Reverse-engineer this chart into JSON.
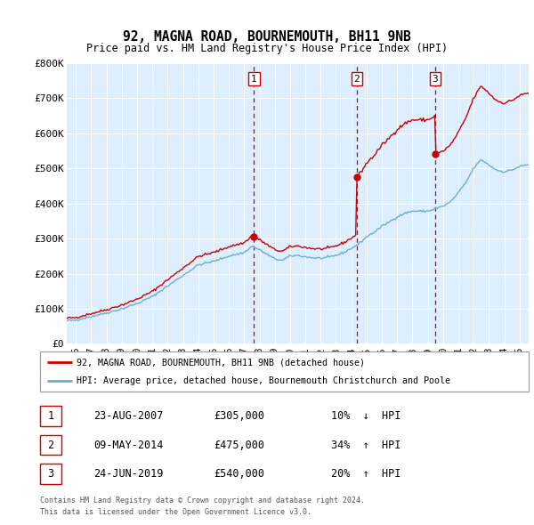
{
  "title": "92, MAGNA ROAD, BOURNEMOUTH, BH11 9NB",
  "subtitle": "Price paid vs. HM Land Registry's House Price Index (HPI)",
  "hpi_label": "92, MAGNA ROAD, BOURNEMOUTH, BH11 9NB (detached house)",
  "hpi_avg_label": "HPI: Average price, detached house, Bournemouth Christchurch and Poole",
  "property_label": "92, MAGNA ROAD, BOURNEMOUTH, BH11 9NB (detached house)",
  "footnote1": "Contains HM Land Registry data © Crown copyright and database right 2024.",
  "footnote2": "This data is licensed under the Open Government Licence v3.0.",
  "sales": [
    {
      "num": 1,
      "date": "23-AUG-2007",
      "price": 305000,
      "pct": "10%",
      "dir": "↓",
      "x_year": 2007.64
    },
    {
      "num": 2,
      "date": "09-MAY-2014",
      "price": 475000,
      "pct": "34%",
      "dir": "↑",
      "x_year": 2014.36
    },
    {
      "num": 3,
      "date": "24-JUN-2019",
      "price": 540000,
      "pct": "20%",
      "dir": "↑",
      "x_year": 2019.47
    }
  ],
  "ylim": [
    0,
    800000
  ],
  "yticks": [
    0,
    100000,
    200000,
    300000,
    400000,
    500000,
    600000,
    700000,
    800000
  ],
  "ytick_labels": [
    "£0",
    "£100K",
    "£200K",
    "£300K",
    "£400K",
    "£500K",
    "£600K",
    "£700K",
    "£800K"
  ],
  "hpi_color": "#6baed6",
  "property_color": "#cc0000",
  "vline_color": "#cc0000",
  "bg_color": "#ddeeff",
  "xlim_left": 1995.5,
  "xlim_right": 2025.5
}
